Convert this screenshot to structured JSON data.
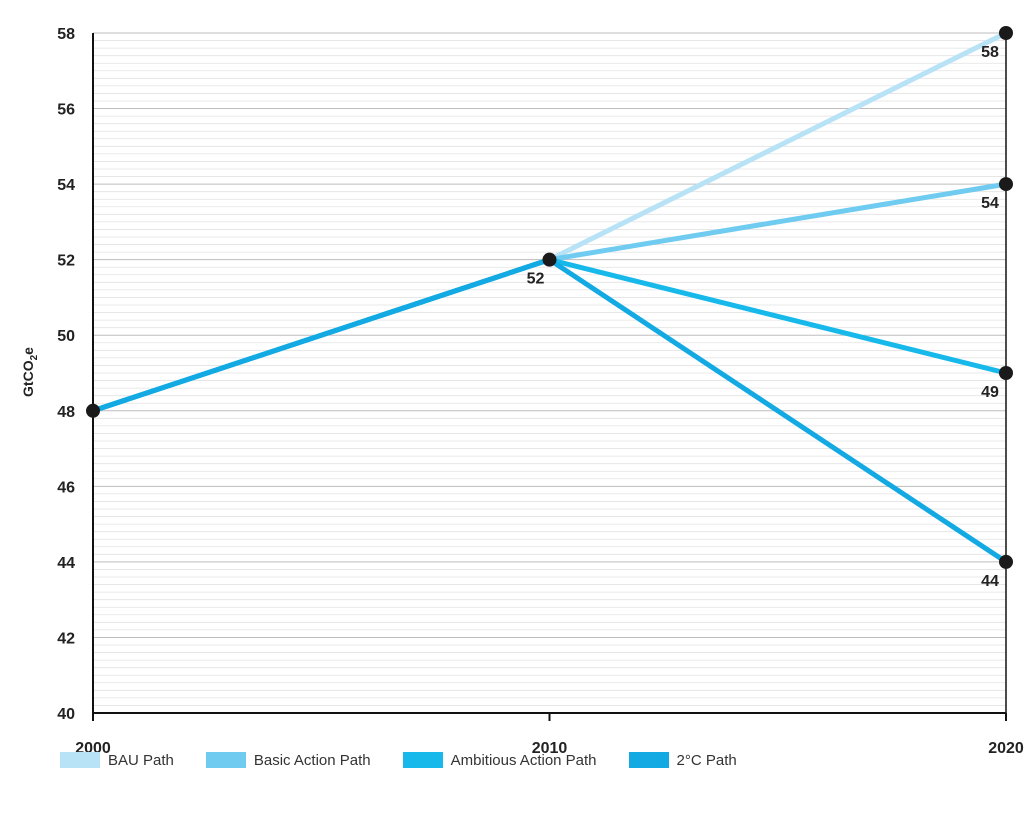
{
  "chart_data": {
    "type": "line",
    "title": "",
    "xlabel": "",
    "ylabel": "GtCO",
    "ylabel_sub": "2",
    "ylabel_tail": "e",
    "x": [
      2000,
      2010,
      2020
    ],
    "xlim": [
      2000,
      2020
    ],
    "ylim": [
      40,
      58
    ],
    "yticks": [
      40,
      42,
      44,
      46,
      48,
      50,
      52,
      54,
      56,
      58
    ],
    "xticks": [
      2000,
      2010,
      2020
    ],
    "grid": true,
    "legend_position": "bottom-left",
    "series": [
      {
        "name": "BAU Path",
        "color": "#b8e2f5",
        "points": [
          [
            2000,
            48
          ],
          [
            2010,
            52
          ],
          [
            2020,
            58
          ]
        ]
      },
      {
        "name": "Basic Action Path",
        "color": "#6fcbf0",
        "points": [
          [
            2000,
            48
          ],
          [
            2010,
            52
          ],
          [
            2020,
            54
          ]
        ]
      },
      {
        "name": "Ambitious Action Path",
        "color": "#16b9ea",
        "points": [
          [
            2000,
            48
          ],
          [
            2010,
            52
          ],
          [
            2020,
            49
          ]
        ]
      },
      {
        "name": "2°C Path",
        "color": "#13a9e3",
        "points": [
          [
            2000,
            48
          ],
          [
            2010,
            52
          ],
          [
            2020,
            44
          ]
        ]
      }
    ],
    "markers": [
      {
        "x": 2000,
        "y": 48,
        "label": ""
      },
      {
        "x": 2010,
        "y": 52,
        "label": "52"
      },
      {
        "x": 2020,
        "y": 58,
        "label": "58"
      },
      {
        "x": 2020,
        "y": 54,
        "label": "54"
      },
      {
        "x": 2020,
        "y": 49,
        "label": "49"
      },
      {
        "x": 2020,
        "y": 44,
        "label": "44"
      }
    ]
  }
}
